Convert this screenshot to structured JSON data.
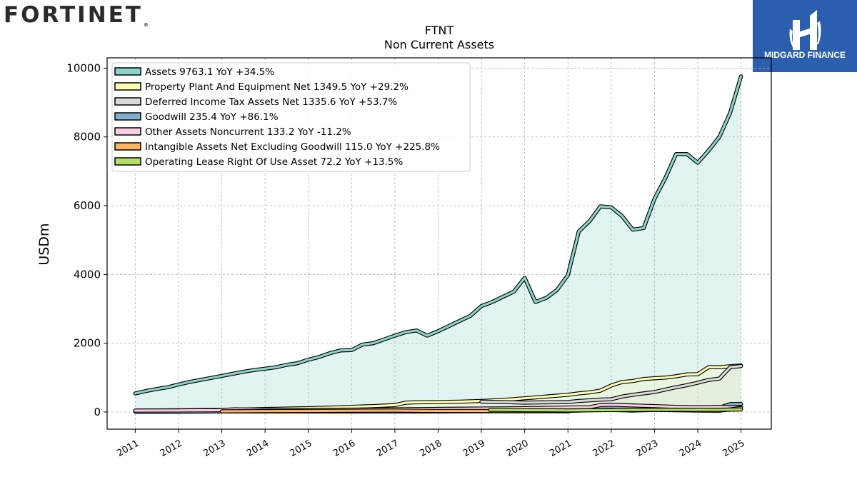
{
  "brand": {
    "left_logo_text": "FORTINET",
    "right_logo_text": "MIDGARD FINANCE"
  },
  "chart_data": {
    "type": "area",
    "title": "FTNT",
    "subtitle": "Non Current  Assets",
    "ylabel": "USDm",
    "xlabel": "",
    "ylim": [
      -500,
      10300
    ],
    "xlim": [
      2010.35,
      2025.7
    ],
    "yticks": [
      0,
      2000,
      4000,
      6000,
      8000,
      10000
    ],
    "xtick_labels": [
      "2011",
      "2012",
      "2013",
      "2014",
      "2015",
      "2016",
      "2017",
      "2018",
      "2019",
      "2020",
      "2021",
      "2022",
      "2023",
      "2024",
      "2025"
    ],
    "grid": true,
    "legend_position": "top-left",
    "series": [
      {
        "name": "Assets",
        "legend": "Assets  9763.1 YoY +34.5%",
        "color": "#8dd3c7",
        "x": [
          2011.0,
          2011.25,
          2011.5,
          2011.75,
          2012.0,
          2012.25,
          2012.5,
          2012.75,
          2013.0,
          2013.25,
          2013.5,
          2013.75,
          2014.0,
          2014.25,
          2014.5,
          2014.75,
          2015.0,
          2015.25,
          2015.5,
          2015.75,
          2016.0,
          2016.25,
          2016.5,
          2016.75,
          2017.0,
          2017.25,
          2017.5,
          2017.75,
          2018.0,
          2018.25,
          2018.5,
          2018.75,
          2019.0,
          2019.25,
          2019.5,
          2019.75,
          2020.0,
          2020.25,
          2020.5,
          2020.75,
          2021.0,
          2021.25,
          2021.5,
          2021.75,
          2022.0,
          2022.25,
          2022.5,
          2022.75,
          2023.0,
          2023.25,
          2023.5,
          2023.75,
          2024.0,
          2024.25,
          2024.5,
          2024.75,
          2025.0
        ],
        "values": [
          540,
          610,
          670,
          720,
          800,
          870,
          930,
          990,
          1050,
          1110,
          1170,
          1220,
          1260,
          1300,
          1370,
          1420,
          1520,
          1600,
          1710,
          1790,
          1800,
          1960,
          2000,
          2110,
          2220,
          2320,
          2370,
          2220,
          2350,
          2500,
          2650,
          2800,
          3080,
          3200,
          3350,
          3500,
          3900,
          3200,
          3320,
          3550,
          3980,
          5250,
          5550,
          5980,
          5950,
          5700,
          5300,
          5350,
          6200,
          6800,
          7500,
          7500,
          7250,
          7600,
          8000,
          8700,
          9763.1
        ]
      },
      {
        "name": "Property Plant And Equipment Net",
        "legend": "Property Plant And Equipment Net  1349.5 YoY +29.2%",
        "color": "#ffffb3",
        "x": [
          2011.0,
          2011.5,
          2012.0,
          2012.5,
          2013.0,
          2013.5,
          2014.0,
          2014.5,
          2015.0,
          2015.5,
          2016.0,
          2016.5,
          2017.0,
          2017.25,
          2017.5,
          2018.0,
          2018.5,
          2019.0,
          2019.5,
          2020.0,
          2020.5,
          2021.0,
          2021.25,
          2021.5,
          2021.75,
          2022.0,
          2022.25,
          2022.5,
          2022.75,
          2023.0,
          2023.25,
          2023.5,
          2023.75,
          2024.0,
          2024.25,
          2024.5,
          2024.75,
          2025.0
        ],
        "values": [
          40,
          45,
          50,
          55,
          60,
          70,
          85,
          100,
          110,
          125,
          150,
          170,
          200,
          270,
          280,
          290,
          300,
          320,
          350,
          400,
          450,
          500,
          540,
          570,
          620,
          770,
          870,
          900,
          960,
          980,
          1000,
          1040,
          1090,
          1100,
          1300,
          1300,
          1330,
          1349.5
        ]
      },
      {
        "name": "Deferred Income Tax Assets Net",
        "legend": "Deferred Income Tax Assets Net  1335.6 YoY +53.7%",
        "color": "#d9d9d9",
        "x": [
          2019.0,
          2019.5,
          2020.0,
          2020.5,
          2021.0,
          2021.25,
          2021.5,
          2021.75,
          2022.0,
          2022.25,
          2022.5,
          2022.75,
          2023.0,
          2023.25,
          2023.5,
          2023.75,
          2024.0,
          2024.25,
          2024.5,
          2024.75,
          2025.0
        ],
        "values": [
          300,
          290,
          270,
          280,
          290,
          320,
          340,
          360,
          370,
          450,
          500,
          540,
          580,
          650,
          720,
          780,
          850,
          930,
          970,
          1300,
          1335.6
        ]
      },
      {
        "name": "Goodwill",
        "legend": "Goodwill  235.4 YoY +86.1%",
        "color": "#80b1d3",
        "x": [
          2011.0,
          2012.0,
          2013.0,
          2014.0,
          2015.0,
          2016.0,
          2017.0,
          2018.0,
          2019.0,
          2020.0,
          2021.0,
          2021.5,
          2022.0,
          2023.0,
          2024.0,
          2024.5,
          2024.75,
          2025.0
        ],
        "values": [
          4,
          4,
          15,
          15,
          15,
          15,
          15,
          15,
          20,
          20,
          20,
          120,
          130,
          130,
          126,
          126,
          230,
          235.4
        ]
      },
      {
        "name": "Other Assets Noncurrent",
        "legend": "Other Assets Noncurrent  133.2 YoY -11.2%",
        "color": "#fccde5",
        "x": [
          2011.0,
          2012.0,
          2012.9,
          2013.3,
          2014.0,
          2015.0,
          2016.0,
          2017.0,
          2018.0,
          2019.0,
          2020.0,
          2021.0,
          2021.5,
          2021.75,
          2022.0,
          2022.5,
          2023.0,
          2023.5,
          2024.0,
          2024.5,
          2025.0
        ],
        "values": [
          40,
          45,
          50,
          80,
          60,
          60,
          70,
          80,
          90,
          100,
          110,
          130,
          140,
          200,
          210,
          190,
          170,
          150,
          140,
          150,
          133.2
        ]
      },
      {
        "name": "Intangible Assets Net Excluding Goodwill",
        "legend": "Intangible Assets Net Excluding Goodwill  115.0 YoY +225.8%",
        "color": "#fdb462",
        "x": [
          2013.0,
          2014.0,
          2015.0,
          2016.0,
          2017.0,
          2018.0,
          2019.0,
          2020.0,
          2021.0,
          2021.5,
          2022.0,
          2022.5,
          2023.0,
          2023.5,
          2024.0,
          2024.5,
          2025.0
        ],
        "values": [
          20,
          25,
          30,
          35,
          40,
          30,
          30,
          25,
          30,
          50,
          60,
          40,
          60,
          50,
          40,
          35,
          115.0
        ]
      },
      {
        "name": "Operating Lease Right Of Use Asset",
        "legend": "Operating Lease Right Of Use Asset  72.2 YoY +13.5%",
        "color": "#b3de69",
        "x": [
          2019.2,
          2019.5,
          2020.0,
          2020.5,
          2021.0,
          2021.5,
          2022.0,
          2022.5,
          2023.0,
          2023.5,
          2024.0,
          2024.5,
          2025.0
        ],
        "values": [
          60,
          60,
          50,
          50,
          45,
          50,
          55,
          60,
          65,
          64,
          63,
          65,
          72.2
        ]
      }
    ]
  }
}
